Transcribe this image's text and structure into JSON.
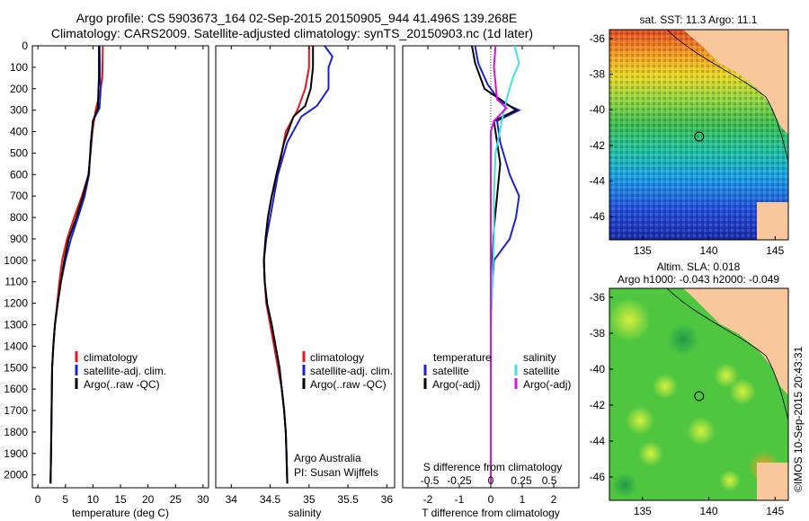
{
  "header": {
    "line1": "Argo profile: CS 5903673_164 02-Sep-2015 20150905_944 41.496S 139.268E",
    "line2": "Climatology: CARS2009. Satellite-adjusted climatology: synTS_20150903.nc (1d later)"
  },
  "colors": {
    "climatology": "#e8141a",
    "satellite": "#1a22d6",
    "argo": "#000000",
    "sat_salinity": "#3fe2e6",
    "argo_salinity": "#e010e0",
    "land": "#f8c89c"
  },
  "chart_data": [
    {
      "type": "line",
      "name": "temperature",
      "xlabel": "temperature (deg C)",
      "xlim": [
        -1,
        31
      ],
      "xticks": [
        0,
        5,
        10,
        15,
        20,
        25,
        30
      ],
      "ylim": [
        2060,
        0
      ],
      "yticks": [
        0,
        100,
        200,
        300,
        400,
        500,
        600,
        700,
        800,
        900,
        1000,
        1100,
        1200,
        1300,
        1400,
        1500,
        1600,
        1700,
        1800,
        1900,
        2000
      ],
      "legend": [
        "climatology",
        "satellite-adj. clim.",
        "Argo(..raw -QC)"
      ],
      "series": [
        {
          "name": "climatology",
          "color": "#e8141a",
          "points": [
            [
              11.8,
              0
            ],
            [
              11.7,
              150
            ],
            [
              11.4,
              200
            ],
            [
              10.5,
              300
            ],
            [
              9.9,
              400
            ],
            [
              9.2,
              600
            ],
            [
              8.0,
              700
            ],
            [
              6.6,
              800
            ],
            [
              5.3,
              900
            ],
            [
              4.4,
              1000
            ],
            [
              3.9,
              1100
            ],
            [
              3.5,
              1200
            ],
            [
              3.1,
              1300
            ],
            [
              2.8,
              1400
            ],
            [
              2.6,
              1500
            ],
            [
              2.5,
              1700
            ],
            [
              2.4,
              1900
            ],
            [
              2.3,
              2040
            ]
          ]
        },
        {
          "name": "satellite-adj. clim.",
          "color": "#1a22d6",
          "points": [
            [
              11.2,
              0
            ],
            [
              11.3,
              150
            ],
            [
              11.4,
              200
            ],
            [
              11.2,
              290
            ],
            [
              10.0,
              350
            ],
            [
              9.6,
              450
            ],
            [
              9.3,
              600
            ],
            [
              8.5,
              700
            ],
            [
              7.3,
              800
            ],
            [
              6.0,
              900
            ],
            [
              5.0,
              1000
            ],
            [
              4.2,
              1100
            ],
            [
              3.6,
              1200
            ],
            [
              3.1,
              1300
            ],
            [
              2.8,
              1400
            ],
            [
              2.6,
              1500
            ],
            [
              2.5,
              1700
            ],
            [
              2.4,
              1900
            ],
            [
              2.3,
              2040
            ]
          ]
        },
        {
          "name": "Argo(..raw -QC)",
          "color": "#000000",
          "points": [
            [
              11.1,
              0
            ],
            [
              11.1,
              150
            ],
            [
              11.0,
              200
            ],
            [
              10.9,
              290
            ],
            [
              10.0,
              350
            ],
            [
              9.7,
              450
            ],
            [
              9.2,
              600
            ],
            [
              8.2,
              700
            ],
            [
              7.0,
              800
            ],
            [
              5.6,
              900
            ],
            [
              4.8,
              1000
            ],
            [
              4.2,
              1100
            ],
            [
              3.6,
              1200
            ],
            [
              3.1,
              1300
            ],
            [
              2.8,
              1400
            ],
            [
              2.6,
              1500
            ],
            [
              2.5,
              1700
            ],
            [
              2.4,
              1900
            ],
            [
              2.3,
              2040
            ]
          ]
        }
      ]
    },
    {
      "type": "line",
      "name": "salinity",
      "xlabel": "salinity",
      "xlim": [
        33.8,
        36.1
      ],
      "xticks": [
        34,
        34.5,
        35,
        35.5,
        36
      ],
      "ylim": [
        2060,
        0
      ],
      "legend": [
        "climatology",
        "satellite-adj. clim.",
        "Argo(..raw -QC)"
      ],
      "annotation": [
        "Argo Australia",
        "PI: Susan Wijffels"
      ],
      "series": [
        {
          "name": "climatology",
          "color": "#e8141a",
          "points": [
            [
              35.0,
              0
            ],
            [
              35.0,
              100
            ],
            [
              34.95,
              200
            ],
            [
              34.85,
              300
            ],
            [
              34.7,
              400
            ],
            [
              34.6,
              600
            ],
            [
              34.52,
              700
            ],
            [
              34.47,
              800
            ],
            [
              34.44,
              900
            ],
            [
              34.42,
              1000
            ],
            [
              34.43,
              1100
            ],
            [
              34.45,
              1200
            ],
            [
              34.5,
              1300
            ],
            [
              34.55,
              1400
            ],
            [
              34.6,
              1500
            ],
            [
              34.65,
              1600
            ],
            [
              34.68,
              1700
            ],
            [
              34.7,
              1800
            ],
            [
              34.71,
              1900
            ],
            [
              34.72,
              2040
            ]
          ]
        },
        {
          "name": "satellite-adj. clim.",
          "color": "#1a22d6",
          "points": [
            [
              35.2,
              0
            ],
            [
              35.3,
              50
            ],
            [
              35.25,
              100
            ],
            [
              35.25,
              200
            ],
            [
              35.1,
              280
            ],
            [
              34.9,
              330
            ],
            [
              34.72,
              450
            ],
            [
              34.6,
              600
            ],
            [
              34.55,
              700
            ],
            [
              34.5,
              800
            ],
            [
              34.45,
              900
            ],
            [
              34.42,
              1000
            ],
            [
              34.43,
              1100
            ],
            [
              34.46,
              1200
            ],
            [
              34.52,
              1300
            ],
            [
              34.57,
              1400
            ],
            [
              34.62,
              1500
            ],
            [
              34.65,
              1600
            ],
            [
              34.68,
              1700
            ],
            [
              34.7,
              1800
            ],
            [
              34.71,
              1900
            ],
            [
              34.72,
              2040
            ]
          ]
        },
        {
          "name": "Argo(..raw -QC)",
          "color": "#000000",
          "points": [
            [
              35.05,
              0
            ],
            [
              35.05,
              100
            ],
            [
              35.02,
              200
            ],
            [
              34.95,
              280
            ],
            [
              34.8,
              330
            ],
            [
              34.68,
              450
            ],
            [
              34.58,
              600
            ],
            [
              34.52,
              700
            ],
            [
              34.47,
              800
            ],
            [
              34.44,
              900
            ],
            [
              34.42,
              1000
            ],
            [
              34.43,
              1100
            ],
            [
              34.46,
              1200
            ],
            [
              34.52,
              1300
            ],
            [
              34.57,
              1400
            ],
            [
              34.62,
              1500
            ],
            [
              34.65,
              1600
            ],
            [
              34.68,
              1700
            ],
            [
              34.7,
              1800
            ],
            [
              34.71,
              1900
            ],
            [
              34.72,
              2040
            ]
          ]
        }
      ]
    },
    {
      "type": "line",
      "name": "difference",
      "xlabel": "T difference from climatology",
      "top_label": "S difference from climatology",
      "xlim": [
        -2.8,
        2.8
      ],
      "xticks": [
        -2,
        -1,
        0,
        1,
        2
      ],
      "s_xticks": [
        "-0.5",
        "-0.25",
        "0",
        "0.25",
        "0.5"
      ],
      "ylim": [
        2060,
        0
      ],
      "legend_headers": [
        "temperature",
        "salinity"
      ],
      "legend": [
        "satellite",
        "Argo(-adj)",
        "satellite",
        "Argo(-adj)"
      ],
      "series": [
        {
          "name": "satellite",
          "group": "temperature",
          "color": "#1a22d6",
          "points": [
            [
              -0.5,
              0
            ],
            [
              -0.4,
              80
            ],
            [
              -0.1,
              180
            ],
            [
              0.3,
              260
            ],
            [
              0.9,
              300
            ],
            [
              0.2,
              350
            ],
            [
              0.3,
              450
            ],
            [
              0.6,
              600
            ],
            [
              0.9,
              700
            ],
            [
              0.8,
              800
            ],
            [
              0.6,
              900
            ],
            [
              0.1,
              1000
            ],
            [
              0.05,
              1100
            ],
            [
              0,
              1300
            ],
            [
              0,
              2040
            ]
          ]
        },
        {
          "name": "Argo(-adj)",
          "group": "temperature",
          "color": "#000000",
          "points": [
            [
              -0.6,
              0
            ],
            [
              -0.5,
              80
            ],
            [
              -0.2,
              200
            ],
            [
              0.4,
              260
            ],
            [
              0.8,
              300
            ],
            [
              0.1,
              350
            ],
            [
              0.3,
              550
            ],
            [
              0.2,
              700
            ],
            [
              0.1,
              850
            ],
            [
              0.05,
              1000
            ],
            [
              0,
              1200
            ],
            [
              0,
              2040
            ]
          ]
        },
        {
          "name": "satellite",
          "group": "salinity",
          "color": "#3fe2e6",
          "points": [
            [
              0.75,
              0
            ],
            [
              0.9,
              80
            ],
            [
              0.7,
              150
            ],
            [
              0.5,
              250
            ],
            [
              0.35,
              350
            ],
            [
              0.15,
              500
            ],
            [
              0.1,
              700
            ],
            [
              0.1,
              900
            ],
            [
              0.05,
              1100
            ],
            [
              0,
              1300
            ],
            [
              0,
              2040
            ]
          ]
        },
        {
          "name": "Argo(-adj)",
          "group": "salinity",
          "color": "#e010e0",
          "points": [
            [
              0.15,
              0
            ],
            [
              0.1,
              100
            ],
            [
              0.2,
              250
            ],
            [
              0.5,
              290
            ],
            [
              0.1,
              350
            ],
            [
              0,
              400
            ],
            [
              0,
              2040
            ]
          ]
        }
      ]
    },
    {
      "type": "heatmap",
      "name": "sst-map",
      "title": "sat. SST: 11.3 Argo: 11.1",
      "xticks": [
        "135",
        "140",
        "145"
      ],
      "yticks": [
        "-36",
        "-38",
        "-40",
        "-42",
        "-44",
        "-46"
      ],
      "xlim": [
        132.5,
        146
      ],
      "ylim": [
        -47.3,
        -35.5
      ],
      "argo_position": [
        139.27,
        -41.5
      ]
    },
    {
      "type": "heatmap",
      "name": "sla-map",
      "title_lines": [
        "Altim. SLA: 0.018",
        "Argo h1000: -0.043 h2000: -0.049"
      ],
      "xticks": [
        "135",
        "140",
        "145"
      ],
      "yticks": [
        "-36",
        "-38",
        "-40",
        "-42",
        "-44",
        "-46"
      ],
      "xlim": [
        132.5,
        146
      ],
      "ylim": [
        -47.3,
        -35.5
      ],
      "argo_position": [
        139.27,
        -41.5
      ]
    }
  ],
  "credit": "©IMOS 10-Sep-2015 20:43:31"
}
